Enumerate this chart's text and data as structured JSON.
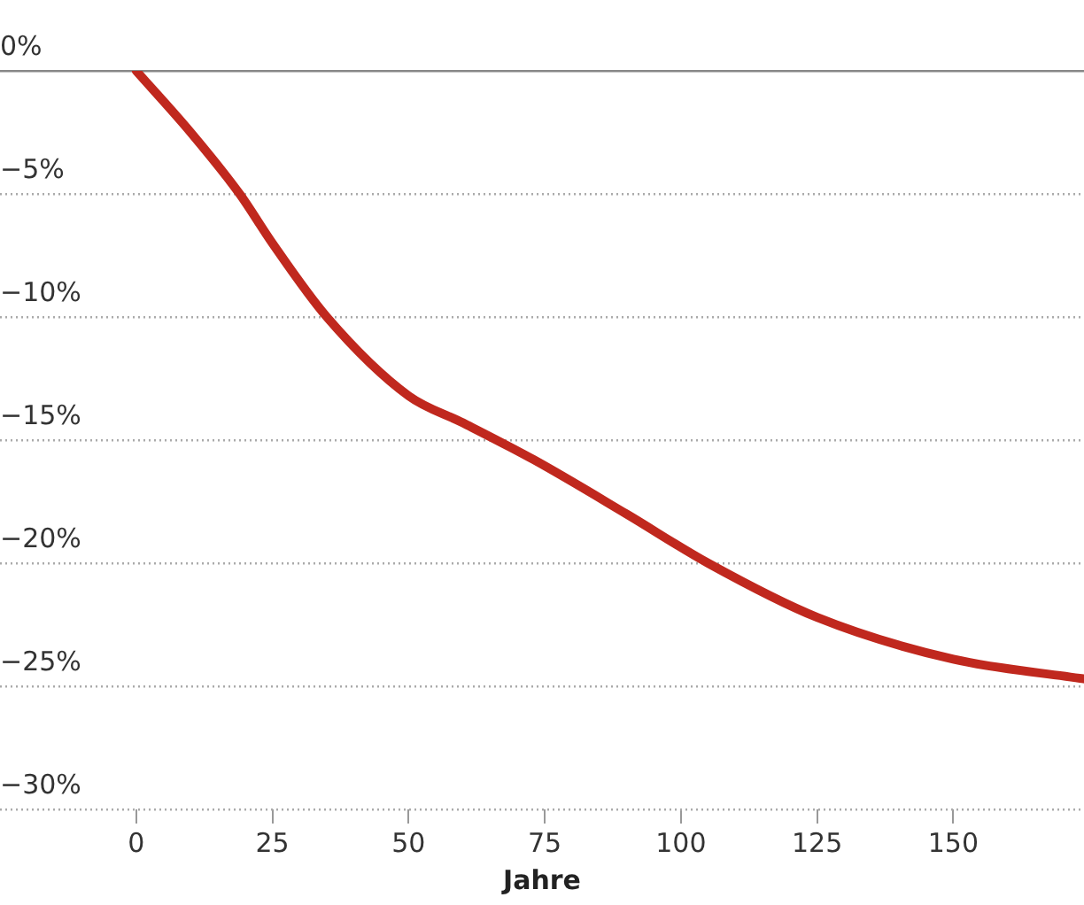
{
  "chart_data": {
    "type": "line",
    "xlabel": "Jahre",
    "x": [
      0,
      10,
      19,
      25,
      35,
      50,
      60,
      73,
      90,
      105,
      125,
      150,
      174
    ],
    "series": [
      {
        "color": "#c0281e",
        "values": [
          0,
          -2.5,
          -5,
          -7,
          -10,
          -13.2,
          -14.3,
          -15.8,
          -18,
          -20,
          -22.2,
          -23.9,
          -24.7
        ]
      }
    ],
    "xlim": [
      -25,
      174
    ],
    "xticks": [
      0,
      25,
      50,
      75,
      100,
      125,
      150
    ],
    "ylim": [
      -30,
      0
    ],
    "yticks": [
      {
        "value": 0,
        "label": "0%"
      },
      {
        "value": -5,
        "label": "−5%"
      },
      {
        "value": -10,
        "label": "−10%"
      },
      {
        "value": -15,
        "label": "−15%"
      },
      {
        "value": -20,
        "label": "−20%"
      },
      {
        "value": -25,
        "label": "−25%"
      },
      {
        "value": -30,
        "label": "−30%"
      }
    ],
    "grid": "y",
    "legend": false,
    "marker": "none",
    "line_style": "solid"
  }
}
